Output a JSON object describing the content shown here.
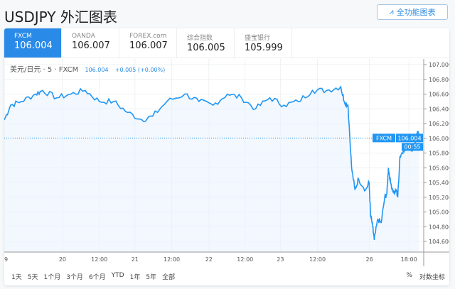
{
  "header": {
    "title": "USDJPY 外汇图表",
    "full_button": "全功能图表",
    "full_icon": "chart-icon"
  },
  "tabs": [
    {
      "name": "FXCM",
      "value": "106.004"
    },
    {
      "name": "OANDA",
      "value": "106.007"
    },
    {
      "name": "FOREX.com",
      "value": "106.007"
    },
    {
      "name": "综合指数",
      "value": "106.005"
    },
    {
      "name": "盛宝银行",
      "value": "105.999"
    }
  ],
  "legend": {
    "symbol": "美元/日元 · 5 · FXCM",
    "price": "106.004",
    "change": "+0.005 (+0.00%)"
  },
  "ranges": [
    "1天",
    "5天",
    "1个月",
    "3个月",
    "6个月",
    "YTD",
    "1年",
    "5年",
    "全部"
  ],
  "right_controls": {
    "percent": "%",
    "log": "对数坐标"
  },
  "colors": {
    "accent": "#2a8ae8",
    "line": "#2196f3"
  },
  "chart_data": {
    "type": "line",
    "x_unit": "hours from start",
    "xlim": [
      0,
      139
    ],
    "ylim": [
      104.4,
      107.08
    ],
    "x_ticks": [
      {
        "t": 0,
        "label": "9"
      },
      {
        "t": 19.3,
        "label": "20"
      },
      {
        "t": 31.5,
        "label": "12:00"
      },
      {
        "t": 43.3,
        "label": "21"
      },
      {
        "t": 55.5,
        "label": "12:00"
      },
      {
        "t": 67.8,
        "label": "22"
      },
      {
        "t": 79.8,
        "label": "12:00"
      },
      {
        "t": 91.5,
        "label": "23"
      },
      {
        "t": 103.8,
        "label": "12:00"
      },
      {
        "t": 121,
        "label": "26"
      },
      {
        "t": 134.1,
        "label": "18:00"
      }
    ],
    "y_ticks": [
      "107.000",
      "106.800",
      "106.600",
      "106.400",
      "106.200",
      "106.000",
      "105.800",
      "105.600",
      "105.400",
      "105.200",
      "105.000",
      "104.800",
      "104.600"
    ],
    "last_price_label": {
      "source": "FXCM",
      "price": "106.004",
      "countdown": "00:55"
    },
    "series": [
      {
        "name": "USDJPY",
        "points": [
          [
            0,
            106.25
          ],
          [
            2.1,
            106.45
          ],
          [
            5.6,
            106.5
          ],
          [
            10.4,
            106.6
          ],
          [
            12.7,
            106.65
          ],
          [
            17.4,
            106.55
          ],
          [
            22.1,
            106.6
          ],
          [
            26.8,
            106.65
          ],
          [
            31.5,
            106.5
          ],
          [
            36.2,
            106.5
          ],
          [
            40.9,
            106.35
          ],
          [
            45.6,
            106.25
          ],
          [
            49.2,
            106.3
          ],
          [
            53.9,
            106.5
          ],
          [
            59.8,
            106.6
          ],
          [
            64.5,
            106.5
          ],
          [
            69.2,
            106.45
          ],
          [
            73.9,
            106.6
          ],
          [
            78.6,
            106.55
          ],
          [
            83.3,
            106.4
          ],
          [
            88,
            106.55
          ],
          [
            92.7,
            106.45
          ],
          [
            97.4,
            106.5
          ],
          [
            102.1,
            106.65
          ],
          [
            106.8,
            106.65
          ],
          [
            111.5,
            106.7
          ],
          [
            112.7,
            106.5
          ],
          [
            113.9,
            106.45
          ],
          [
            115.1,
            105.6
          ],
          [
            116.2,
            105.3
          ],
          [
            117.4,
            105.45
          ],
          [
            119.8,
            105.3
          ],
          [
            120.9,
            105.4
          ],
          [
            121.4,
            104.95
          ],
          [
            122.1,
            104.8
          ],
          [
            122.6,
            104.62
          ],
          [
            123.8,
            104.9
          ],
          [
            124.9,
            104.85
          ],
          [
            126.1,
            105.2
          ],
          [
            126.8,
            105.25
          ],
          [
            127.3,
            105.6
          ],
          [
            128,
            105.4
          ],
          [
            129.2,
            105.25
          ],
          [
            129.9,
            105.3
          ],
          [
            130.4,
            105.2
          ],
          [
            131.1,
            105.75
          ],
          [
            132.3,
            105.85
          ],
          [
            133.9,
            105.9
          ],
          [
            135.1,
            105.85
          ],
          [
            136.3,
            105.95
          ],
          [
            137,
            106.1
          ],
          [
            137.4,
            106.0
          ]
        ]
      }
    ]
  }
}
